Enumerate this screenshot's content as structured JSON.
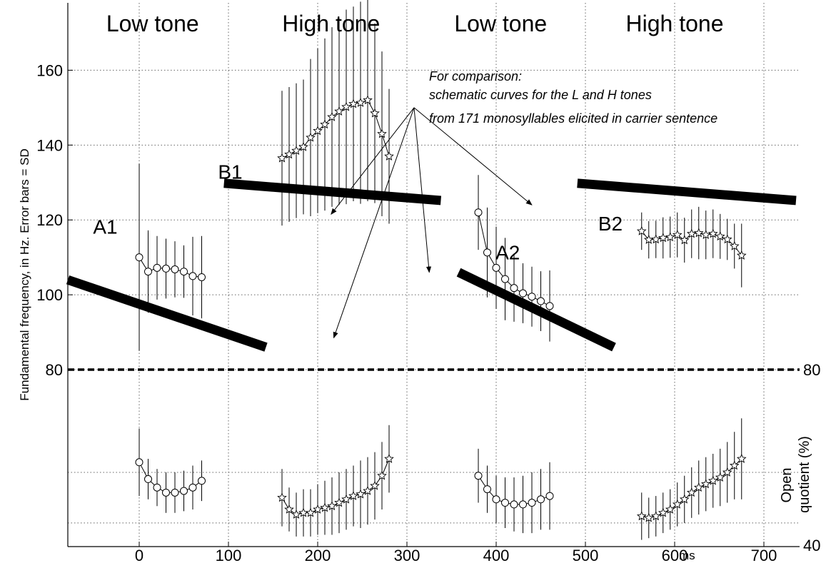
{
  "chart_data": {
    "type": "line",
    "x_unit_label": "ms",
    "xlim": [
      -80,
      740
    ],
    "x_ticks": [
      0,
      100,
      200,
      300,
      400,
      500,
      600,
      700
    ],
    "left_axis": {
      "label": "Fundamental frequency, in Hz. Error bars = SD",
      "ylim": [
        76,
        178
      ],
      "ticks": [
        80,
        100,
        120,
        140,
        160
      ]
    },
    "right_axis": {
      "label_line1": "Open",
      "label_line2": "quotient (%)",
      "ticks": [
        40,
        80
      ]
    },
    "tone_labels": [
      {
        "text": "Low tone",
        "x": 15
      },
      {
        "text": "High tone",
        "x": 215
      },
      {
        "text": "Low tone",
        "x": 405
      },
      {
        "text": "High tone",
        "x": 600
      }
    ],
    "annotation": {
      "lines": [
        "For comparison:",
        "schematic curves for the L and H tones",
        "from 171 monosyllables elicited in carrier sentence"
      ],
      "origin": {
        "x": 308,
        "y": 150
      },
      "arrow_targets": [
        {
          "x": 218,
          "y": 88.5
        },
        {
          "x": 325,
          "y": 106
        },
        {
          "x": 215,
          "y": 121.5
        },
        {
          "x": 440,
          "y": 124
        }
      ]
    },
    "f0_series": [
      {
        "name": "A1",
        "marker": "circle",
        "label_pos": {
          "x": -38,
          "y": 116.3
        },
        "x": [
          0,
          10,
          20,
          30,
          40,
          50,
          60,
          70
        ],
        "y": [
          110,
          106.2,
          107.2,
          107,
          106.8,
          106.2,
          105,
          104.7
        ],
        "sd": [
          25,
          11,
          8.5,
          8,
          7.5,
          7,
          10.5,
          11
        ]
      },
      {
        "name": "B1",
        "marker": "star",
        "label_pos": {
          "x": 102,
          "y": 131
        },
        "x": [
          160,
          168,
          176,
          184,
          192,
          200,
          208,
          216,
          224,
          232,
          240,
          248,
          256,
          264,
          272,
          280
        ],
        "y": [
          136.5,
          137.5,
          138.5,
          139.5,
          142,
          143.8,
          145.5,
          147.5,
          149,
          150.2,
          151,
          151.3,
          152,
          148.5,
          143,
          137
        ],
        "sd": [
          18,
          18,
          18,
          18,
          21,
          22,
          23,
          24,
          25,
          26,
          26,
          27,
          27,
          24,
          22,
          18
        ]
      },
      {
        "name": "A2",
        "marker": "circle",
        "label_pos": {
          "x": 413,
          "y": 109.5
        },
        "x": [
          380,
          390,
          400,
          410,
          420,
          430,
          440,
          450,
          460
        ],
        "y": [
          122,
          111.3,
          107.2,
          104.2,
          101.8,
          100.4,
          99.5,
          98.3,
          97
        ],
        "sd": [
          10,
          12,
          11,
          11,
          9,
          8,
          8,
          8,
          9.5
        ]
      },
      {
        "name": "B2",
        "marker": "star",
        "label_pos": {
          "x": 528,
          "y": 117.2
        },
        "x": [
          563,
          571,
          579,
          587,
          595,
          603,
          611,
          619,
          627,
          635,
          643,
          651,
          659,
          667,
          675
        ],
        "y": [
          117,
          114.7,
          114.8,
          115.2,
          115.4,
          116,
          114.6,
          116.3,
          116.5,
          116,
          116.3,
          115.6,
          114.8,
          113,
          110.5
        ],
        "sd": [
          5,
          5,
          5,
          5.5,
          5.5,
          6,
          6,
          6.5,
          7,
          6.5,
          6.5,
          6,
          5.5,
          6,
          8.5
        ]
      }
    ],
    "reference_bars": [
      {
        "x1": -80,
        "y1": 104,
        "x2": 142,
        "y2": 86
      },
      {
        "x1": 95,
        "y1": 129.8,
        "x2": 338,
        "y2": 125.2
      },
      {
        "x1": 358,
        "y1": 106,
        "x2": 532,
        "y2": 86
      },
      {
        "x1": 491,
        "y1": 129.8,
        "x2": 736,
        "y2": 125.2
      }
    ],
    "oq_axis": {
      "ylim": [
        38,
        86
      ],
      "divider": 80
    },
    "oq_series": [
      {
        "marker": "circle",
        "x": [
          0,
          10,
          20,
          30,
          40,
          50,
          60,
          70
        ],
        "y": [
          63,
          58,
          55.5,
          54,
          54,
          54.5,
          55.5,
          57.5
        ],
        "sd": [
          10,
          6,
          5.5,
          6,
          6,
          6,
          6.5,
          6
        ]
      },
      {
        "marker": "star",
        "x": [
          160,
          168,
          176,
          184,
          192,
          200,
          208,
          216,
          224,
          232,
          240,
          248,
          256,
          264,
          272,
          280
        ],
        "y": [
          52.5,
          49,
          47.5,
          48,
          48,
          49,
          49.5,
          50,
          51,
          52,
          53,
          53.5,
          54.5,
          56,
          59,
          64
        ],
        "sd": [
          8.5,
          6.5,
          6.5,
          7,
          7,
          7.5,
          8,
          8.5,
          9,
          9,
          9,
          10,
          10,
          10,
          10,
          10
        ]
      },
      {
        "marker": "circle",
        "x": [
          380,
          390,
          400,
          410,
          420,
          430,
          440,
          450,
          460
        ],
        "y": [
          59,
          55,
          52,
          51,
          50.5,
          50.5,
          51,
          52,
          53
        ],
        "sd": [
          8,
          7,
          7,
          7.5,
          8,
          8.5,
          9,
          9,
          10
        ]
      },
      {
        "marker": "star",
        "x": [
          563,
          571,
          579,
          587,
          595,
          603,
          611,
          619,
          627,
          635,
          643,
          651,
          659,
          667,
          675
        ],
        "y": [
          47,
          46.5,
          47,
          48,
          49,
          50.5,
          52,
          54,
          55.5,
          56.5,
          57.5,
          58.5,
          60,
          62,
          64
        ],
        "sd": [
          7,
          6,
          6,
          6,
          6,
          6.5,
          7,
          7.5,
          8,
          8,
          8,
          8.5,
          9,
          10,
          12
        ]
      }
    ]
  }
}
